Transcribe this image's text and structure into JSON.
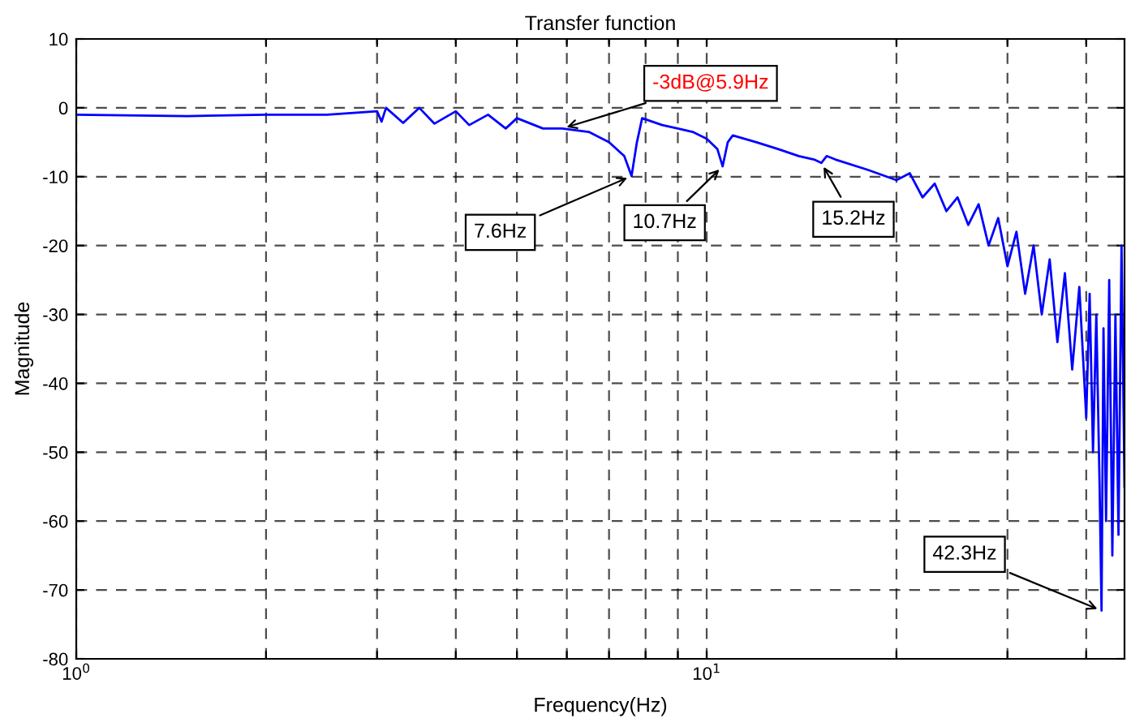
{
  "chart_data": {
    "type": "line",
    "title": "Transfer function",
    "xlabel": "Frequency(Hz)",
    "ylabel": "Magnitude",
    "log": "x",
    "grid": true,
    "line_style": "solid",
    "marker": "none",
    "xlim": [
      1,
      46
    ],
    "ylim": [
      -80,
      10
    ],
    "xticks": [
      {
        "value": 1,
        "label": "10$^{0}$"
      },
      {
        "value": 2,
        "label": null
      },
      {
        "value": 3,
        "label": null
      },
      {
        "value": 4,
        "label": null
      },
      {
        "value": 5,
        "label": null
      },
      {
        "value": 6,
        "label": null
      },
      {
        "value": 7,
        "label": null
      },
      {
        "value": 8,
        "label": null
      },
      {
        "value": 9,
        "label": null
      },
      {
        "value": 10,
        "label": "10$^{1}$"
      },
      {
        "value": 20,
        "label": null
      },
      {
        "value": 30,
        "label": null
      },
      {
        "value": 40,
        "label": null
      }
    ],
    "yticks": [
      -80,
      -70,
      -60,
      -50,
      -40,
      -30,
      -20,
      -10,
      0,
      10
    ],
    "series": [
      {
        "color": "#0000ff",
        "x": [
          1,
          1.5,
          2,
          2.5,
          3,
          3.05,
          3.1,
          3.3,
          3.5,
          3.7,
          4,
          4.2,
          4.5,
          4.8,
          5,
          5.5,
          5.9,
          6.5,
          7,
          7.4,
          7.6,
          7.75,
          7.9,
          8.5,
          9,
          9.5,
          10,
          10.4,
          10.6,
          10.8,
          11,
          12,
          13,
          14,
          14.8,
          15.2,
          15.5,
          16,
          18,
          20,
          21,
          22,
          23,
          24,
          25,
          26,
          27,
          28,
          29,
          30,
          31,
          32,
          33,
          34,
          35,
          36,
          37,
          38,
          39,
          40,
          40.5,
          41,
          41.5,
          42,
          42.3,
          42.6,
          43,
          43.5,
          44,
          44.5,
          45,
          45.5,
          46
        ],
        "values": [
          -1,
          -1.2,
          -1,
          -1,
          -0.5,
          -2,
          0,
          -2.2,
          0,
          -2.3,
          -0.5,
          -2.5,
          -1,
          -3,
          -1.5,
          -3,
          -3,
          -3.5,
          -5,
          -7,
          -9.9,
          -5,
          -1.5,
          -2.5,
          -3,
          -3.5,
          -4.5,
          -6,
          -8.5,
          -5,
          -4,
          -5,
          -6,
          -7,
          -7.5,
          -8,
          -7,
          -7.5,
          -9,
          -10.5,
          -9.5,
          -13,
          -11,
          -15,
          -13,
          -17,
          -14,
          -20,
          -16,
          -23,
          -18,
          -27,
          -20,
          -30,
          -22,
          -34,
          -24,
          -38,
          -26,
          -45,
          -27,
          -50,
          -30,
          -55,
          -73,
          -32,
          -60,
          -25,
          -65,
          -30,
          -62,
          -20,
          -55
        ]
      }
    ],
    "annotations": [
      {
        "text": "-3dB@5.9Hz",
        "x": 5.9,
        "y": -3
      },
      {
        "text": "7.6Hz",
        "x": 7.6,
        "y": -9.9
      },
      {
        "text": "10.7Hz",
        "x": 10.6,
        "y": -8.5
      },
      {
        "text": "15.2Hz",
        "x": 15.2,
        "y": -8
      },
      {
        "text": "42.3Hz",
        "x": 42.3,
        "y": -73
      }
    ]
  }
}
